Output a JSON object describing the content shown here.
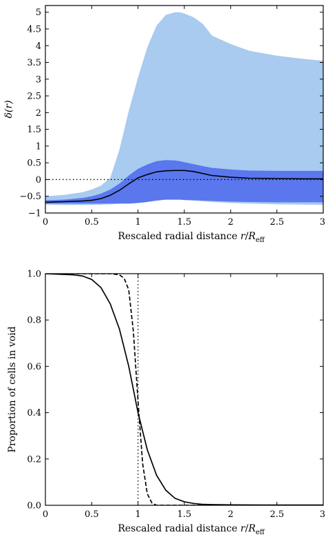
{
  "chart_data": [
    {
      "type": "area",
      "xlabel": "Rescaled radial distance r / R_eff",
      "xlabel_parts": {
        "text": "Rescaled radial distance ",
        "r": "r",
        "slash": "/",
        "R": "R",
        "sub": "eff"
      },
      "ylabel": "δ(r)",
      "xlim": [
        0,
        3
      ],
      "ylim": [
        -1,
        5.2
      ],
      "x_ticks": [
        "0",
        "0.5",
        "1",
        "1.5",
        "2",
        "2.5",
        "3"
      ],
      "y_ticks": [
        "−1",
        "−0.5",
        "0",
        "0.5",
        "1",
        "1.5",
        "2",
        "2.5",
        "3",
        "3.5",
        "4",
        "4.5",
        "5"
      ],
      "reference_line": {
        "y": 0,
        "style": "dotted"
      },
      "grid": false,
      "legend": "none",
      "colors": {
        "outer_band": "#a8cbef",
        "inner_band": "#5a77ee",
        "median_line": "#000000"
      },
      "x": [
        0,
        0.2,
        0.4,
        0.5,
        0.6,
        0.7,
        0.8,
        0.9,
        1.0,
        1.1,
        1.2,
        1.3,
        1.4,
        1.45,
        1.5,
        1.6,
        1.7,
        1.8,
        2.0,
        2.2,
        2.5,
        2.8,
        3.0
      ],
      "series": [
        {
          "role": "outer-band-upper",
          "values": [
            -0.5,
            -0.46,
            -0.38,
            -0.3,
            -0.18,
            0.05,
            0.9,
            2.05,
            3.05,
            3.95,
            4.6,
            4.92,
            5.0,
            5.0,
            4.96,
            4.85,
            4.65,
            4.3,
            4.05,
            3.85,
            3.7,
            3.6,
            3.55
          ]
        },
        {
          "role": "inner-band-upper",
          "values": [
            -0.62,
            -0.6,
            -0.55,
            -0.5,
            -0.42,
            -0.3,
            -0.12,
            0.12,
            0.32,
            0.45,
            0.55,
            0.58,
            0.57,
            0.55,
            0.52,
            0.46,
            0.4,
            0.35,
            0.3,
            0.27,
            0.26,
            0.26,
            0.26
          ]
        },
        {
          "role": "median",
          "values": [
            -0.68,
            -0.66,
            -0.64,
            -0.62,
            -0.57,
            -0.47,
            -0.32,
            -0.13,
            0.05,
            0.15,
            0.23,
            0.26,
            0.27,
            0.27,
            0.27,
            0.24,
            0.18,
            0.12,
            0.07,
            0.04,
            0.03,
            0.02,
            0.02
          ]
        },
        {
          "role": "inner-band-lower",
          "values": [
            -0.72,
            -0.72,
            -0.72,
            -0.72,
            -0.72,
            -0.72,
            -0.72,
            -0.72,
            -0.7,
            -0.67,
            -0.63,
            -0.6,
            -0.6,
            -0.6,
            -0.61,
            -0.62,
            -0.63,
            -0.64,
            -0.66,
            -0.67,
            -0.68,
            -0.68,
            -0.68
          ]
        },
        {
          "role": "outer-band-lower",
          "values": [
            -0.75,
            -0.76,
            -0.76,
            -0.76,
            -0.75,
            -0.74,
            -0.72,
            -0.7,
            -0.67,
            -0.63,
            -0.61,
            -0.6,
            -0.6,
            -0.6,
            -0.61,
            -0.63,
            -0.65,
            -0.67,
            -0.7,
            -0.72,
            -0.74,
            -0.75,
            -0.76
          ]
        }
      ]
    },
    {
      "type": "line",
      "xlabel": "Rescaled radial distance r / R_eff",
      "xlabel_parts": {
        "text": "Rescaled radial distance ",
        "r": "r",
        "slash": "/",
        "R": "R",
        "sub": "eff"
      },
      "ylabel": "Proportion of cells in void",
      "xlim": [
        0,
        3
      ],
      "ylim": [
        0,
        1
      ],
      "x_ticks": [
        "0",
        "0.5",
        "1",
        "1.5",
        "2",
        "2.5",
        "3"
      ],
      "y_ticks": [
        "0.0",
        "0.2",
        "0.4",
        "0.6",
        "0.8",
        "1.0"
      ],
      "reference_line": {
        "x": 1,
        "style": "dotted"
      },
      "grid": false,
      "legend": "none",
      "series": [
        {
          "style": "solid",
          "x": [
            0,
            0.3,
            0.4,
            0.5,
            0.6,
            0.7,
            0.8,
            0.9,
            1.0,
            1.1,
            1.2,
            1.3,
            1.4,
            1.5,
            1.6,
            1.7,
            1.8,
            2.0,
            2.5,
            3.0
          ],
          "values": [
            1.0,
            0.995,
            0.99,
            0.975,
            0.94,
            0.87,
            0.76,
            0.6,
            0.4,
            0.24,
            0.13,
            0.065,
            0.03,
            0.015,
            0.008,
            0.004,
            0.003,
            0.002,
            0.001,
            0.001
          ]
        },
        {
          "style": "dashed",
          "x": [
            0,
            0.7,
            0.8,
            0.85,
            0.9,
            0.95,
            1.0,
            1.05,
            1.1,
            1.15,
            1.2,
            1.3,
            3.0
          ],
          "values": [
            1.0,
            1.0,
            0.995,
            0.98,
            0.93,
            0.75,
            0.45,
            0.18,
            0.05,
            0.01,
            0.0,
            0.0,
            0.0
          ]
        }
      ]
    }
  ]
}
